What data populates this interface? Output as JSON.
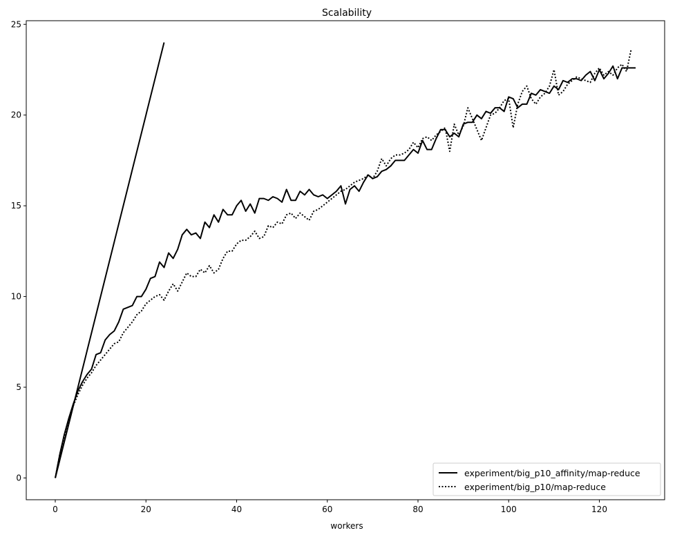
{
  "chart_data": {
    "type": "line",
    "title": "Scalability",
    "xlabel": "workers",
    "ylabel": "",
    "xlim": [
      -6.4,
      134.4
    ],
    "ylim": [
      -1.2,
      25.2
    ],
    "xticks": [
      0,
      20,
      40,
      60,
      80,
      100,
      120
    ],
    "yticks": [
      0,
      5,
      10,
      15,
      20,
      25
    ],
    "grid": false,
    "legend_position": "bottom-right",
    "ideal": {
      "x": [
        0,
        24
      ],
      "y": [
        0,
        24
      ]
    },
    "series": [
      {
        "name": "experiment/big_p10_affinity/map-reduce",
        "style": "solid",
        "color": "#000000",
        "x_start": 0,
        "x_step": 1,
        "values": [
          0,
          1.3,
          2.4,
          3.3,
          4.1,
          4.8,
          5.3,
          5.7,
          6.0,
          6.8,
          6.9,
          7.6,
          7.9,
          8.1,
          8.6,
          9.3,
          9.4,
          9.5,
          10.0,
          10.0,
          10.4,
          11.0,
          11.1,
          11.9,
          11.6,
          12.4,
          12.1,
          12.6,
          13.4,
          13.7,
          13.4,
          13.5,
          13.2,
          14.1,
          13.8,
          14.5,
          14.1,
          14.8,
          14.5,
          14.5,
          15.0,
          15.3,
          14.7,
          15.1,
          14.6,
          15.4,
          15.4,
          15.3,
          15.5,
          15.4,
          15.2,
          15.9,
          15.3,
          15.3,
          15.8,
          15.6,
          15.9,
          15.6,
          15.5,
          15.6,
          15.4,
          15.6,
          15.8,
          16.1,
          15.1,
          15.9,
          16.1,
          15.8,
          16.3,
          16.7,
          16.5,
          16.6,
          16.9,
          17.0,
          17.2,
          17.5,
          17.5,
          17.5,
          17.8,
          18.1,
          17.9,
          18.6,
          18.1,
          18.1,
          18.7,
          19.2,
          19.2,
          18.8,
          19.0,
          18.8,
          19.5,
          19.6,
          19.6,
          20.0,
          19.8,
          20.2,
          20.1,
          20.4,
          20.4,
          20.2,
          21.0,
          20.9,
          20.4,
          20.6,
          20.6,
          21.2,
          21.1,
          21.4,
          21.3,
          21.2,
          21.6,
          21.4,
          21.9,
          21.8,
          22.0,
          22.0,
          21.9,
          22.2,
          22.4,
          21.9,
          22.5,
          22.0,
          22.3,
          22.7,
          22.0,
          22.6,
          22.6,
          22.6,
          22.6
        ]
      },
      {
        "name": "experiment/big_p10/map-reduce",
        "style": "dotted",
        "color": "#000000",
        "x_start": 0,
        "x_step": 1,
        "values": [
          0,
          1.3,
          2.3,
          3.2,
          4.0,
          4.6,
          5.1,
          5.5,
          5.8,
          6.2,
          6.5,
          6.8,
          7.1,
          7.4,
          7.5,
          8.0,
          8.3,
          8.6,
          9.0,
          9.2,
          9.6,
          9.8,
          10.0,
          10.1,
          9.8,
          10.3,
          10.7,
          10.3,
          10.8,
          11.3,
          11.1,
          11.1,
          11.5,
          11.3,
          11.7,
          11.3,
          11.5,
          12.1,
          12.5,
          12.5,
          12.9,
          13.1,
          13.1,
          13.3,
          13.6,
          13.2,
          13.3,
          13.9,
          13.8,
          14.1,
          14.0,
          14.5,
          14.6,
          14.3,
          14.6,
          14.4,
          14.2,
          14.7,
          14.8,
          15.0,
          15.2,
          15.4,
          15.6,
          15.8,
          15.9,
          16.1,
          16.3,
          16.4,
          16.5,
          16.7,
          16.5,
          16.9,
          17.6,
          17.2,
          17.6,
          17.8,
          17.8,
          17.9,
          18.1,
          18.5,
          18.2,
          18.7,
          18.8,
          18.6,
          18.9,
          19.1,
          19.3,
          18.0,
          19.5,
          18.9,
          19.4,
          20.4,
          19.8,
          19.2,
          18.6,
          19.3,
          20.0,
          20.1,
          20.4,
          20.8,
          20.9,
          19.3,
          20.6,
          21.3,
          21.6,
          20.9,
          20.6,
          21.0,
          21.2,
          21.6,
          22.5,
          21.1,
          21.3,
          21.7,
          21.9,
          22.1,
          22.0,
          21.9,
          21.8,
          22.3,
          22.6,
          22.2,
          22.4,
          22.2,
          22.6,
          22.8,
          22.4,
          23.6
        ]
      }
    ]
  }
}
